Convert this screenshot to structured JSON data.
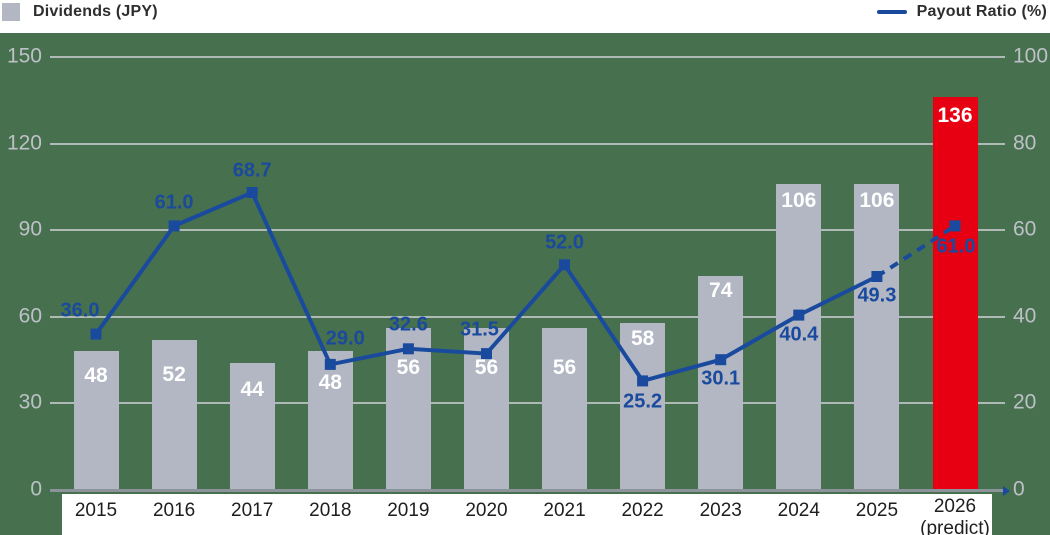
{
  "legend": {
    "dividends": {
      "label": "Dividends (JPY)",
      "swatch_icon": "gray-square"
    },
    "payout": {
      "label": "Payout Ratio (%)",
      "swatch_icon": "blue-line"
    }
  },
  "colors": {
    "background": "#47704E",
    "bar": "#B2B7C3",
    "bar_highlight": "#E60012",
    "line": "#1A4A9E",
    "grid": "#C9CDD1",
    "baseline": "#8D939B",
    "bar_value_text": "#FFFFFF",
    "ratio_label_text": "#1A4A9E",
    "tick_text": "#BDC1C7",
    "year_text": "#1E1E1E"
  },
  "chart_data": {
    "type": "bar",
    "combo": "bar+line",
    "grid": true,
    "legend_position": "top",
    "categories": [
      "2015",
      "2016",
      "2017",
      "2018",
      "2019",
      "2020",
      "2021",
      "2022",
      "2023",
      "2024",
      "2025",
      "2026"
    ],
    "last_category_sublabel": "(predict)",
    "left_axis": {
      "label": "Dividends (JPY)",
      "ticks": [
        0,
        30,
        60,
        90,
        120,
        150
      ],
      "range": [
        0,
        150
      ]
    },
    "right_axis": {
      "label": "Payout Ratio (%)",
      "ticks": [
        0,
        20,
        40,
        60,
        80,
        100
      ],
      "range": [
        0,
        100
      ]
    },
    "series": [
      {
        "name": "Dividends (JPY)",
        "type": "bar",
        "axis": "left",
        "values": [
          48,
          52,
          44,
          48,
          56,
          56,
          56,
          58,
          74,
          106,
          106,
          136
        ],
        "highlight_index": 11,
        "value_label_dy": [
          25,
          35,
          27,
          32,
          40,
          40,
          40,
          16,
          15,
          17,
          17,
          19
        ]
      },
      {
        "name": "Payout Ratio (%)",
        "type": "line",
        "axis": "right",
        "values": [
          36.0,
          61.0,
          68.7,
          29.0,
          32.6,
          31.5,
          52.0,
          25.2,
          30.1,
          40.4,
          49.3,
          61.0
        ],
        "value_decimals": 1,
        "dashed_from_index": 10,
        "label_offsets": [
          [
            -16,
            -23
          ],
          [
            0,
            -23
          ],
          [
            0,
            -22
          ],
          [
            15,
            -25
          ],
          [
            0,
            -24
          ],
          [
            -7,
            -24
          ],
          [
            0,
            -22
          ],
          [
            0,
            21
          ],
          [
            0,
            19
          ],
          [
            0,
            20
          ],
          [
            0,
            19
          ],
          [
            1,
            21
          ]
        ]
      }
    ]
  }
}
